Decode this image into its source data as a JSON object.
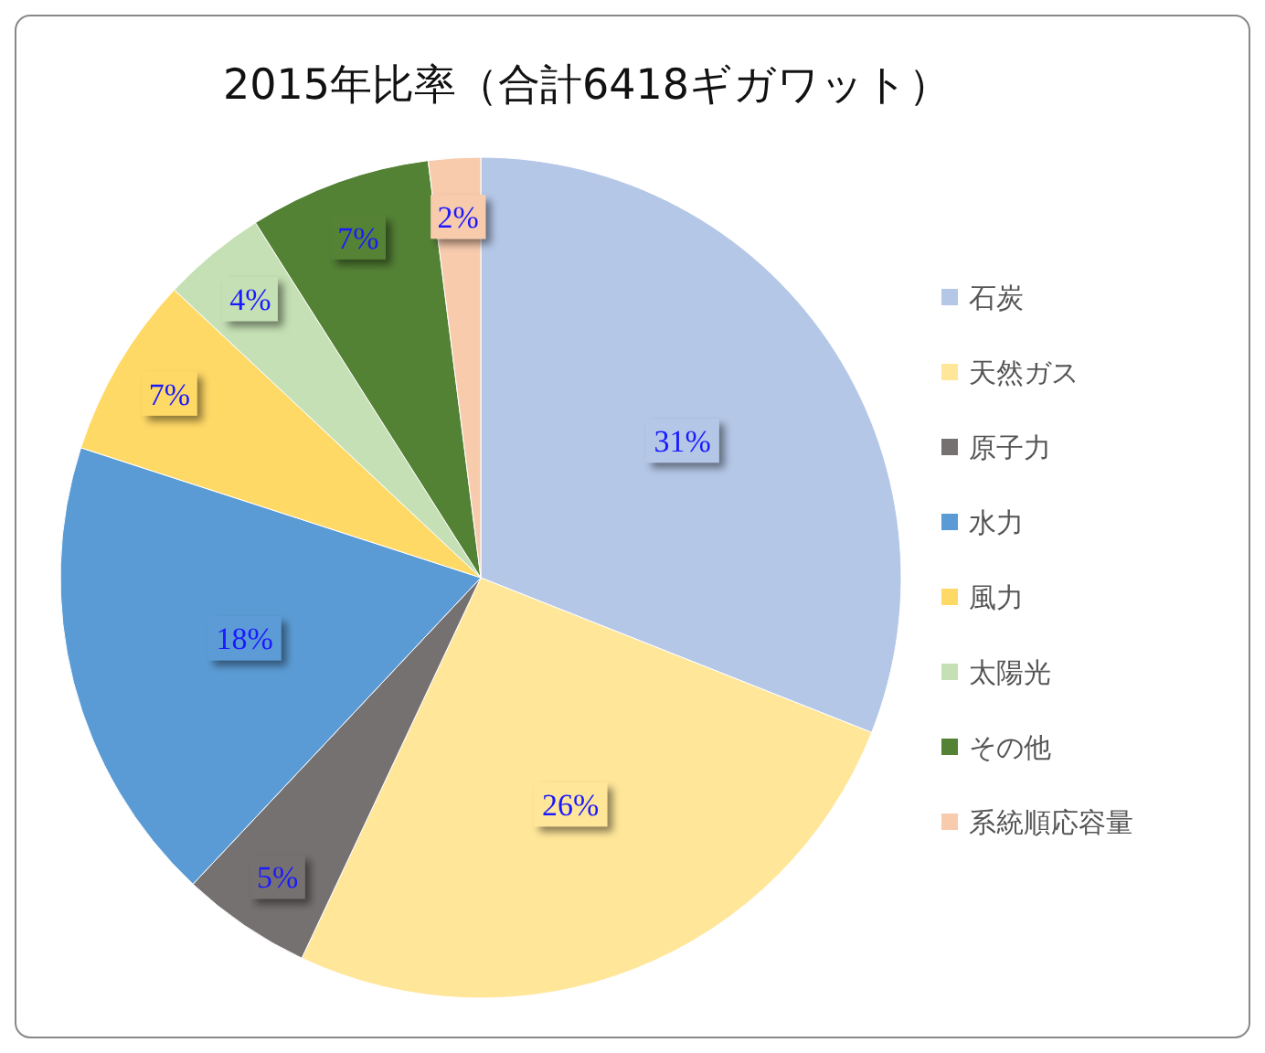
{
  "chart_data": {
    "type": "pie",
    "title": "2015年比率（合計6418ギガワット）",
    "categories": [
      "石炭",
      "天然ガス",
      "原子力",
      "水力",
      "風力",
      "太陽光",
      "その他",
      "系統順応容量"
    ],
    "values": [
      31,
      26,
      5,
      18,
      7,
      4,
      7,
      2
    ],
    "value_labels": [
      "31%",
      "26%",
      "5%",
      "18%",
      "7%",
      "4%",
      "7%",
      "2%"
    ],
    "colors": [
      "#b4c7e7",
      "#ffe699",
      "#767171",
      "#5b9bd5",
      "#ffd966",
      "#c5e0b4",
      "#548235",
      "#f8cbad"
    ],
    "legend": "right"
  }
}
